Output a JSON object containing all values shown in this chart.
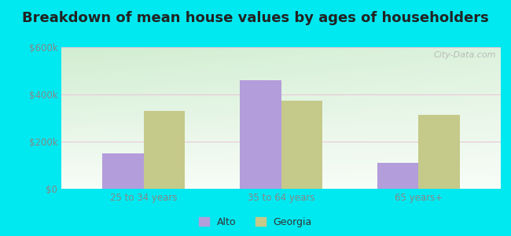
{
  "title": "Breakdown of mean house values by ages of householders",
  "categories": [
    "25 to 34 years",
    "35 to 64 years",
    "65 years+"
  ],
  "alto_values": [
    150000,
    460000,
    110000
  ],
  "georgia_values": [
    330000,
    375000,
    315000
  ],
  "alto_color": "#b39ddb",
  "georgia_color": "#c5c98a",
  "ylim": [
    0,
    600000
  ],
  "yticks": [
    0,
    200000,
    400000,
    600000
  ],
  "ytick_labels": [
    "$0",
    "$200k",
    "$400k",
    "$600k"
  ],
  "legend_labels": [
    "Alto",
    "Georgia"
  ],
  "bg_outer": "#00e8f0",
  "watermark": "City-Data.com",
  "title_fontsize": 13,
  "bar_width": 0.3,
  "grid_color": "#e8c8d8",
  "tick_color": "#888888",
  "title_color": "#222222"
}
